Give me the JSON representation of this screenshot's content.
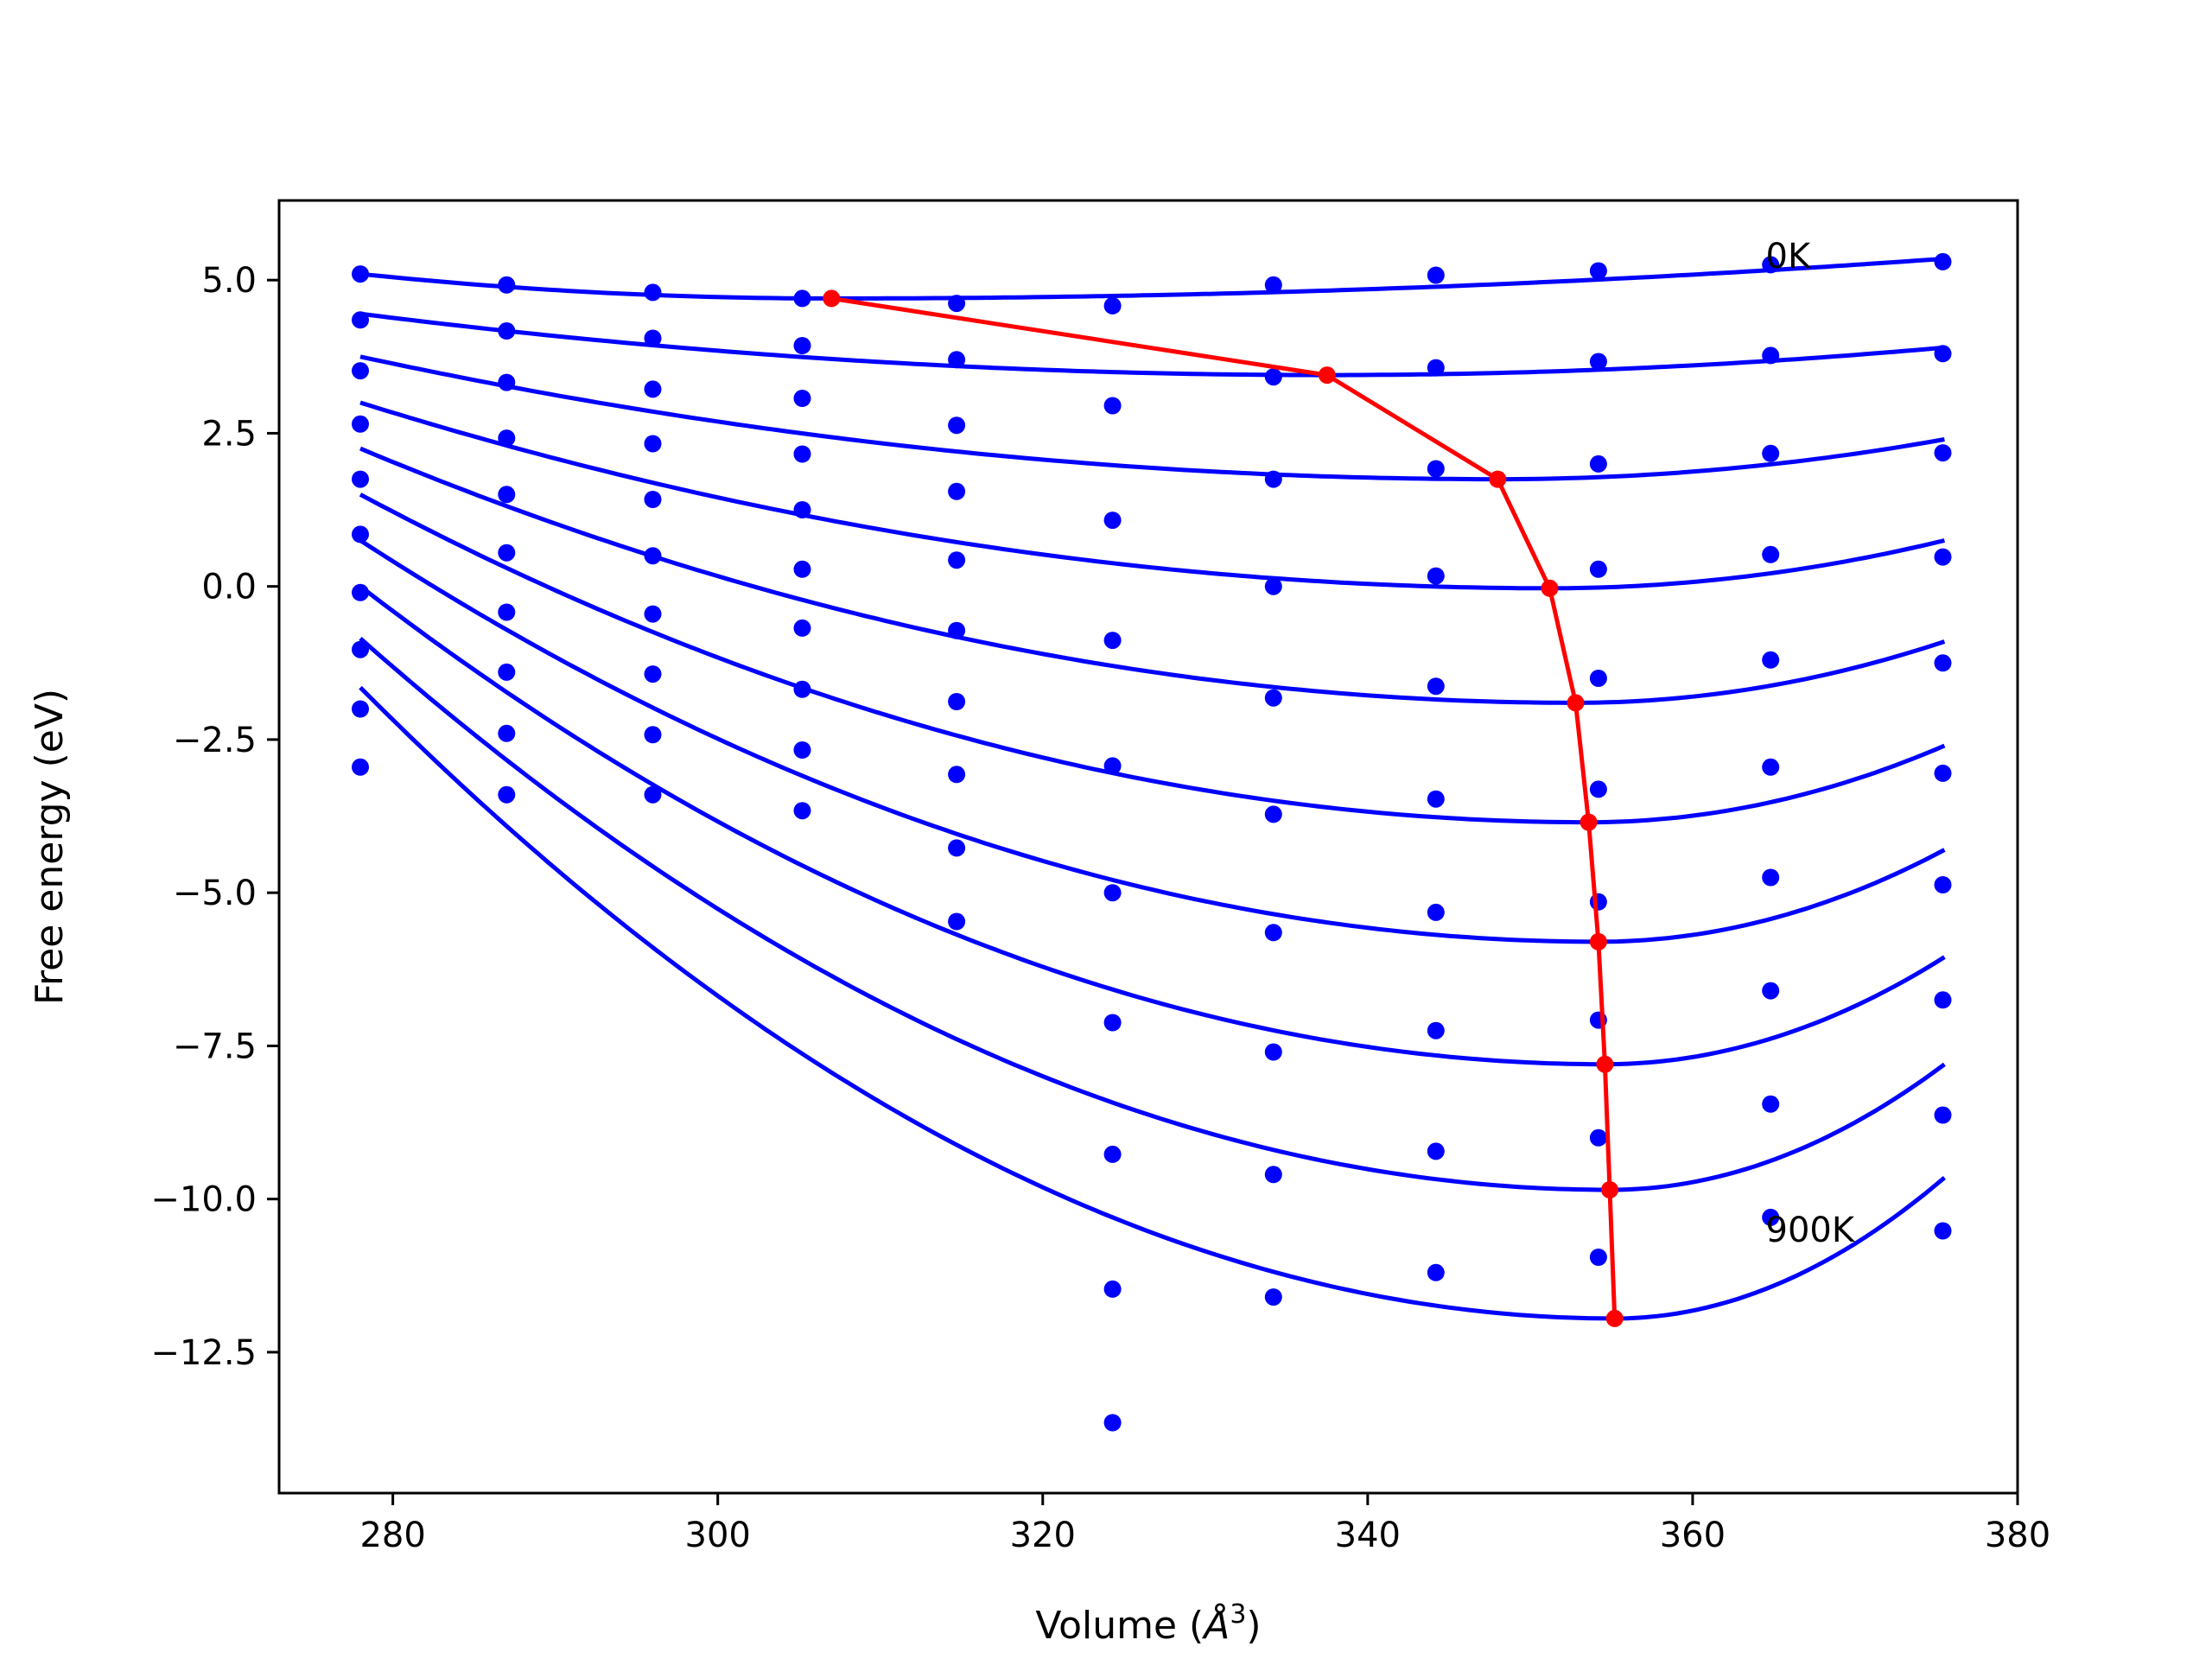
{
  "chart_data": {
    "type": "scatter",
    "xlabel_main": "Volume (",
    "xlabel_unit": "Å",
    "xlabel_sup": "3",
    "xlabel_end": ")",
    "ylabel": "Free energy (eV)",
    "xlim": [
      273,
      380
    ],
    "ylim": [
      -14.8,
      6.3
    ],
    "x_ticks": [
      280,
      300,
      320,
      340,
      360,
      380
    ],
    "y_ticks": [
      5.0,
      2.5,
      0.0,
      -2.5,
      -5.0,
      -7.5,
      -10.0,
      -12.5
    ],
    "y_tick_labels": [
      "5.0",
      "2.5",
      "0.0",
      "−2.5",
      "−5.0",
      "−7.5",
      "−10.0",
      "−12.5"
    ],
    "annotations": [
      {
        "text": "0K",
        "x": 364.5,
        "y": 5.4
      },
      {
        "text": "900K",
        "x": 364.5,
        "y": -10.5
      }
    ],
    "colors": {
      "fit": "#0000ff",
      "points": "#0000ff",
      "minima": "#ff0000",
      "axes": "#000000"
    },
    "fit_curves": [
      {
        "x": [
          278,
          307,
          375.5
        ],
        "y": [
          5.1,
          4.7,
          5.35
        ]
      },
      {
        "x": [
          278,
          337.5,
          375.5
        ],
        "y": [
          4.45,
          3.45,
          3.9
        ]
      },
      {
        "x": [
          278,
          348,
          375.5
        ],
        "y": [
          3.75,
          1.75,
          2.4
        ]
      },
      {
        "x": [
          278,
          351.2,
          375.5
        ],
        "y": [
          3.0,
          -0.03,
          0.75
        ]
      },
      {
        "x": [
          278,
          352.8,
          375.5
        ],
        "y": [
          2.25,
          -1.9,
          -0.9
        ]
      },
      {
        "x": [
          278,
          353.6,
          375.5
        ],
        "y": [
          1.5,
          -3.85,
          -2.6
        ]
      },
      {
        "x": [
          278,
          354.2,
          375.5
        ],
        "y": [
          0.75,
          -5.8,
          -4.3
        ]
      },
      {
        "x": [
          278,
          354.6,
          375.5
        ],
        "y": [
          0.0,
          -7.8,
          -6.05
        ]
      },
      {
        "x": [
          278,
          354.9,
          375.5
        ],
        "y": [
          -0.85,
          -9.85,
          -7.8
        ]
      },
      {
        "x": [
          278,
          355.2,
          375.5
        ],
        "y": [
          -1.65,
          -11.95,
          -9.65
        ]
      }
    ],
    "minima_path": {
      "x": [
        307,
        337.5,
        348,
        351.2,
        352.8,
        353.6,
        354.2,
        354.6,
        354.9,
        355.2
      ],
      "y": [
        4.7,
        3.45,
        1.75,
        -0.03,
        -1.9,
        -3.85,
        -5.8,
        -7.8,
        -9.85,
        -11.95
      ]
    },
    "points_x": [
      278,
      287,
      296,
      305.2,
      314.7,
      324.3,
      334.2,
      344.2,
      354.2,
      364.8,
      375.4
    ],
    "points_by_temperature": [
      [
        5.1,
        4.92,
        4.8,
        4.7,
        4.62,
        4.58,
        4.92,
        5.08,
        5.15,
        5.25,
        5.3
      ],
      [
        4.35,
        4.17,
        4.05,
        3.93,
        3.7,
        null,
        3.42,
        3.57,
        3.67,
        3.77,
        3.8
      ],
      [
        3.52,
        3.33,
        3.22,
        3.07,
        2.63,
        2.95,
        1.75,
        1.92,
        2.0,
        2.17,
        2.18
      ],
      [
        2.65,
        2.42,
        2.33,
        2.16,
        1.55,
        1.08,
        0.0,
        0.17,
        0.28,
        0.52,
        0.48
      ],
      [
        1.75,
        1.5,
        1.42,
        1.25,
        0.43,
        -0.88,
        -1.82,
        -1.63,
        -1.5,
        -1.2,
        -1.25
      ],
      [
        0.85,
        0.55,
        0.5,
        0.28,
        -0.72,
        -2.93,
        -3.72,
        -3.47,
        -3.31,
        -2.95,
        -3.05
      ],
      [
        -0.1,
        -0.42,
        -0.45,
        -0.68,
        -1.88,
        -5.0,
        -5.65,
        -5.32,
        -5.15,
        -4.75,
        -4.87
      ],
      [
        -1.03,
        -1.4,
        -1.43,
        -1.68,
        -3.07,
        -7.12,
        -7.6,
        -7.25,
        -7.08,
        -6.6,
        -6.75
      ],
      [
        -2.0,
        -2.4,
        -2.42,
        -2.67,
        -4.27,
        -9.27,
        -9.6,
        -9.22,
        -9.0,
        -8.45,
        -8.63
      ],
      [
        -2.95,
        -3.4,
        -3.4,
        -3.66,
        -5.47,
        -11.47,
        -11.6,
        -11.2,
        -10.95,
        -10.3,
        -10.52
      ],
      [
        null,
        null,
        null,
        null,
        null,
        -13.65,
        null,
        null,
        null,
        null,
        null
      ]
    ]
  }
}
